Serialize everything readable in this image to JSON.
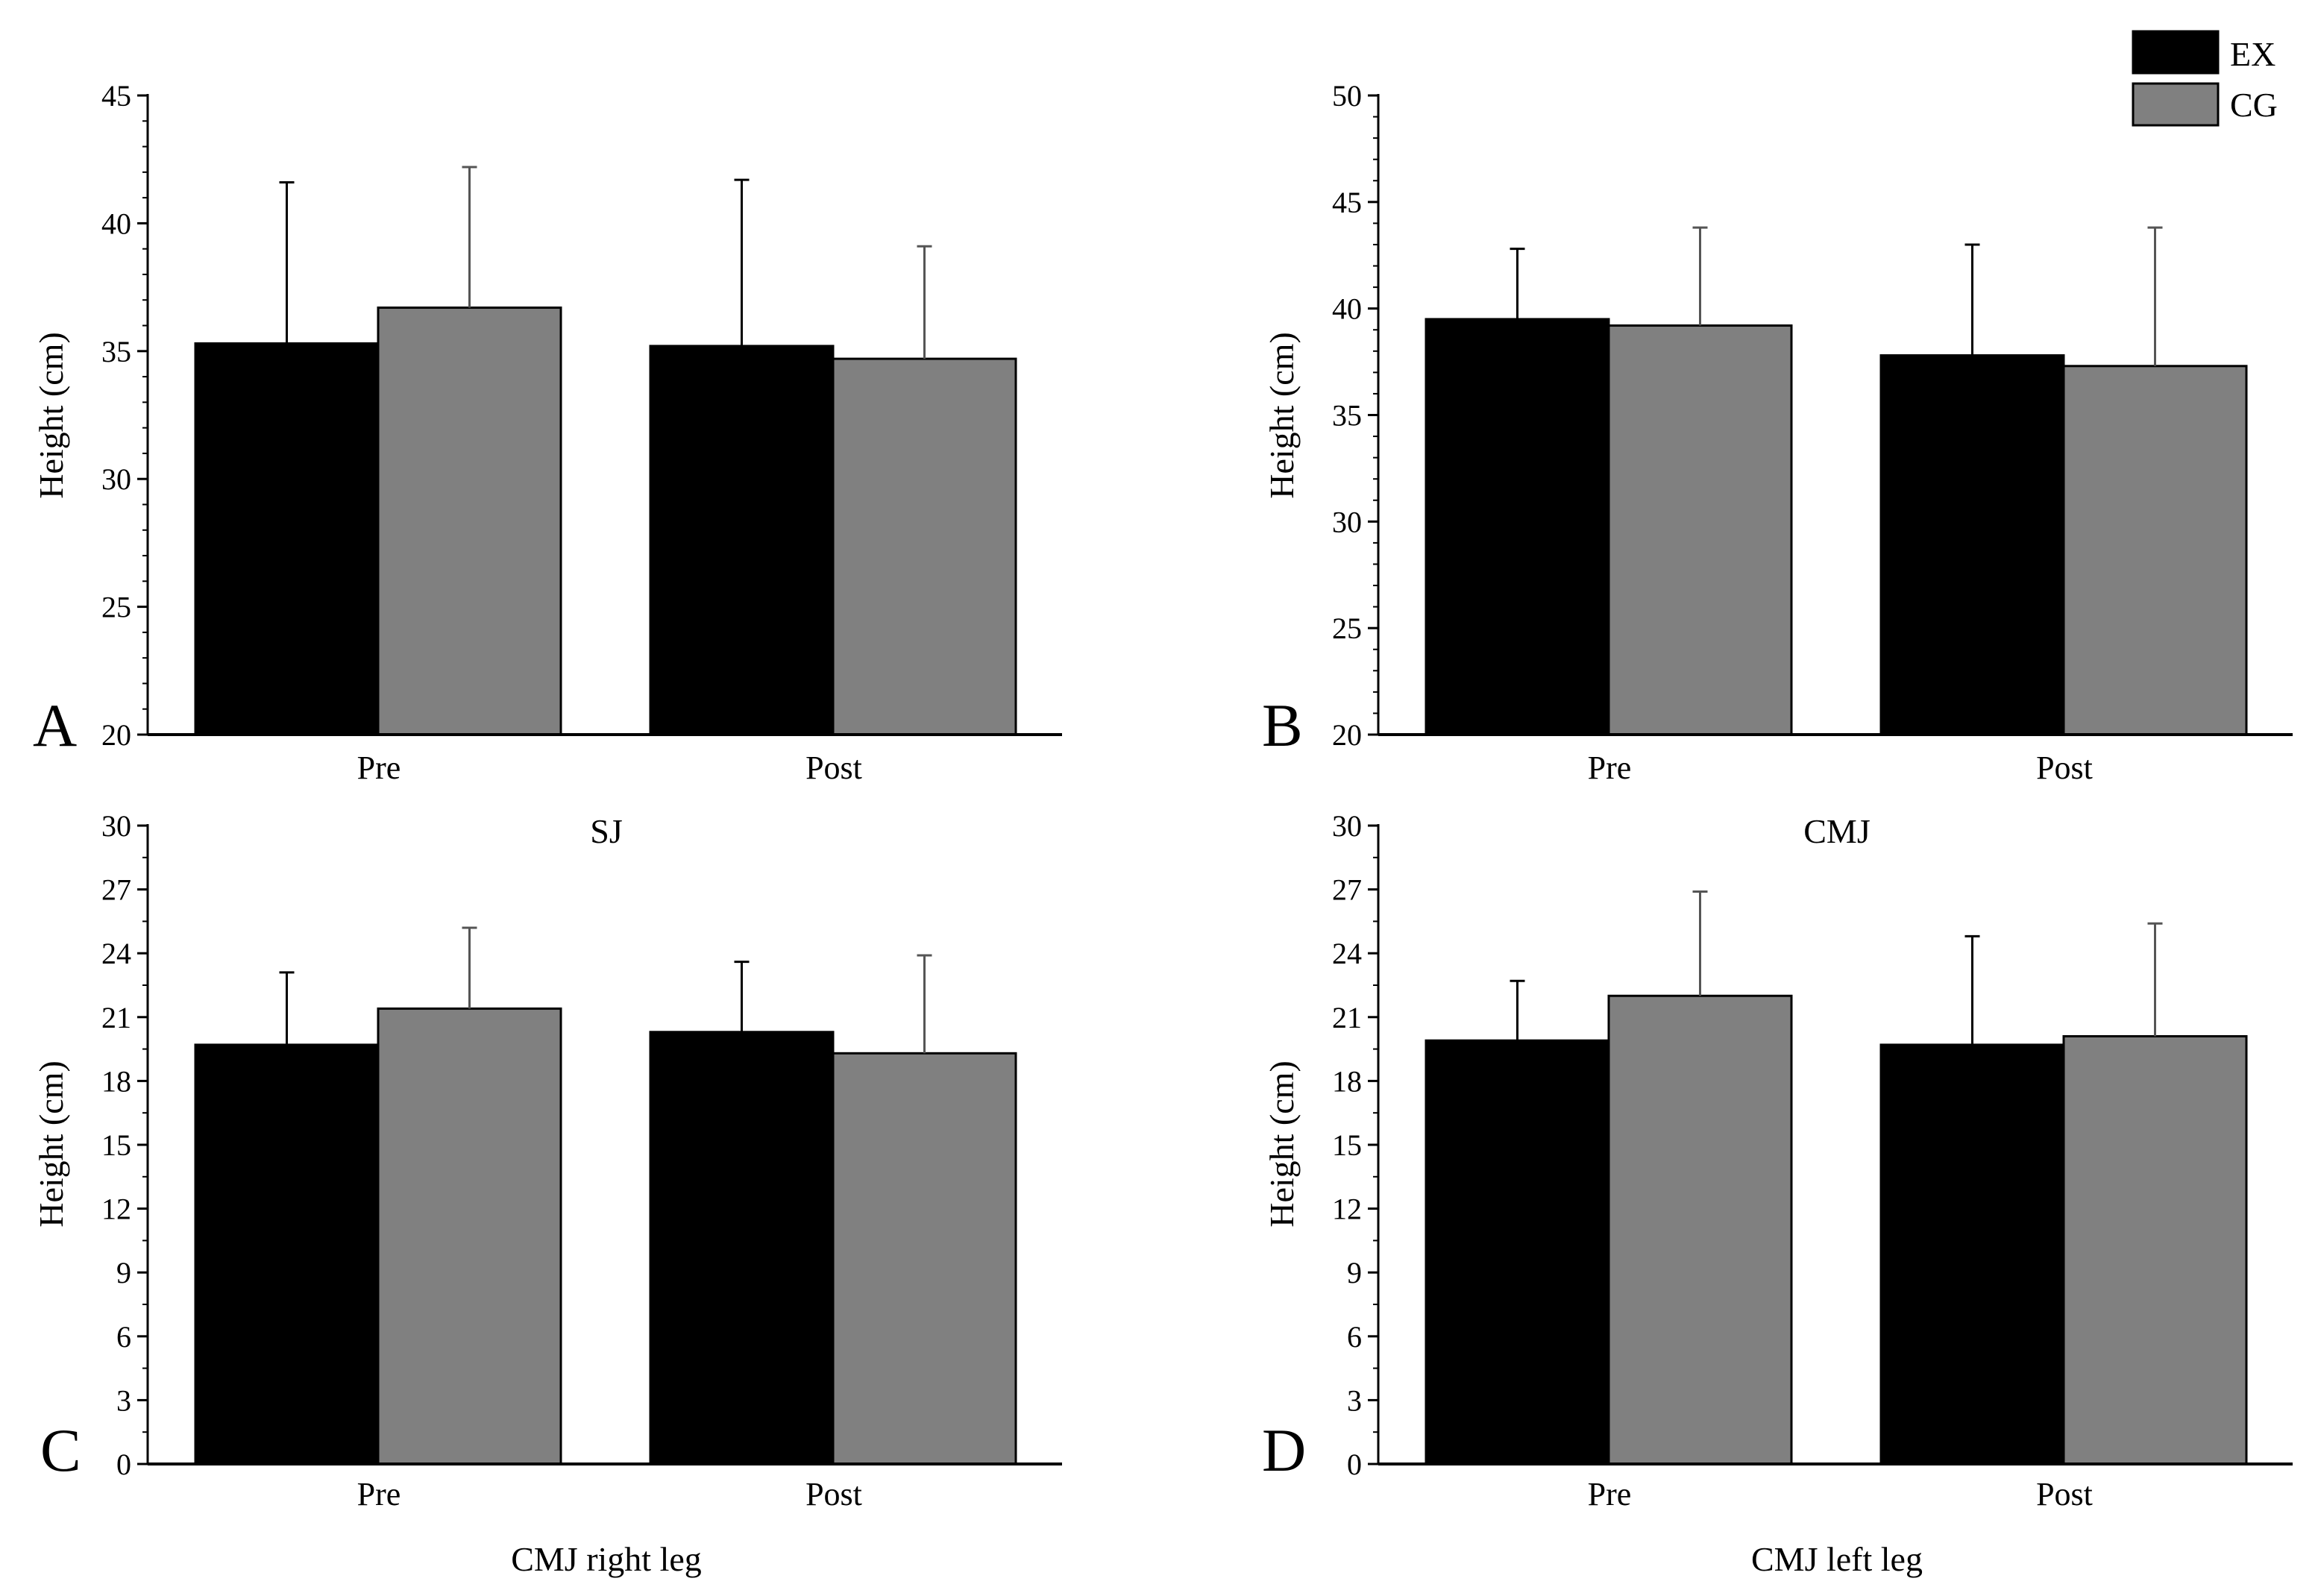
{
  "colors": {
    "EX": "#000000",
    "CG": "#808080",
    "axis": "#000000"
  },
  "legend": [
    {
      "name": "EX",
      "color": "#000000"
    },
    {
      "name": "CG",
      "color": "#808080"
    }
  ],
  "chart_data": [
    {
      "type": "bar",
      "panel": "A",
      "caption": "SJ",
      "ylabel": "Height (cm)",
      "categories": [
        "Pre",
        "Post"
      ],
      "ylim": [
        20,
        45
      ],
      "yticks": [
        20,
        25,
        30,
        35,
        40,
        45
      ],
      "series": [
        {
          "name": "EX",
          "values": [
            35.3,
            35.2
          ],
          "errors": [
            6.3,
            6.5
          ]
        },
        {
          "name": "CG",
          "values": [
            36.7,
            34.7
          ],
          "errors": [
            5.5,
            4.4
          ]
        }
      ]
    },
    {
      "type": "bar",
      "panel": "B",
      "caption": "CMJ",
      "ylabel": "Height (cm)",
      "categories": [
        "Pre",
        "Post"
      ],
      "ylim": [
        20,
        50
      ],
      "yticks": [
        20,
        25,
        30,
        35,
        40,
        45,
        50
      ],
      "series": [
        {
          "name": "EX",
          "values": [
            39.5,
            37.8
          ],
          "errors": [
            3.3,
            5.2
          ]
        },
        {
          "name": "CG",
          "values": [
            39.2,
            37.3
          ],
          "errors": [
            4.6,
            6.5
          ]
        }
      ]
    },
    {
      "type": "bar",
      "panel": "C",
      "caption": "CMJ right leg",
      "ylabel": "Height (cm)",
      "categories": [
        "Pre",
        "Post"
      ],
      "ylim": [
        0,
        30
      ],
      "yticks": [
        0,
        3,
        6,
        9,
        12,
        15,
        18,
        21,
        24,
        27,
        30
      ],
      "series": [
        {
          "name": "EX",
          "values": [
            19.7,
            20.3
          ],
          "errors": [
            3.4,
            3.3
          ]
        },
        {
          "name": "CG",
          "values": [
            21.4,
            19.3
          ],
          "errors": [
            3.8,
            4.6
          ]
        }
      ]
    },
    {
      "type": "bar",
      "panel": "D",
      "caption": "CMJ left leg",
      "ylabel": "Height (cm)",
      "categories": [
        "Pre",
        "Post"
      ],
      "ylim": [
        0,
        30
      ],
      "yticks": [
        0,
        3,
        6,
        9,
        12,
        15,
        18,
        21,
        24,
        27,
        30
      ],
      "series": [
        {
          "name": "EX",
          "values": [
            19.9,
            19.7
          ],
          "errors": [
            2.8,
            5.1
          ]
        },
        {
          "name": "CG",
          "values": [
            22.0,
            20.1
          ],
          "errors": [
            4.9,
            5.3
          ]
        }
      ]
    }
  ]
}
